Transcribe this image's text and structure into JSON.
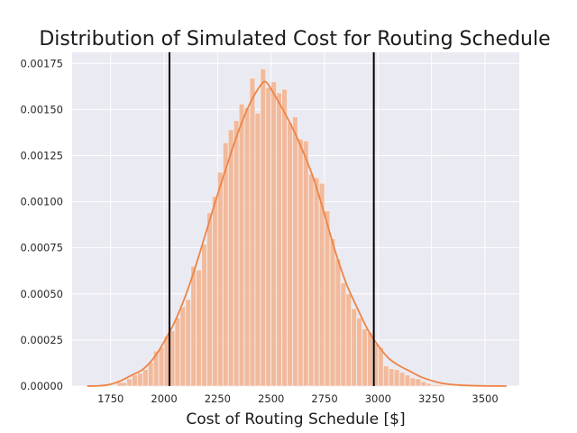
{
  "chart_data": {
    "type": "histogram",
    "title": "Distribution of Simulated Cost for Routing Schedule",
    "xlabel": "Cost of Routing Schedule [$]",
    "ylabel": "",
    "xlim": [
      1570,
      3660
    ],
    "ylim": [
      0,
      0.00181
    ],
    "xticks": [
      "1750",
      "2000",
      "2250",
      "2500",
      "2750",
      "3000",
      "3250",
      "3500"
    ],
    "yticks": [
      "0.00000",
      "0.00025",
      "0.00050",
      "0.00075",
      "0.00100",
      "0.00125",
      "0.00150",
      "0.00175"
    ],
    "grid": true,
    "histogram": {
      "bin_edges": [
        1645,
        1690,
        1735,
        1780,
        1825,
        1850,
        1875,
        1900,
        1925,
        1950,
        1975,
        2000,
        2025,
        2050,
        2075,
        2100,
        2125,
        2150,
        2175,
        2200,
        2225,
        2250,
        2275,
        2300,
        2325,
        2350,
        2375,
        2400,
        2425,
        2450,
        2475,
        2500,
        2525,
        2550,
        2575,
        2600,
        2625,
        2650,
        2675,
        2700,
        2725,
        2750,
        2775,
        2800,
        2825,
        2850,
        2875,
        2900,
        2925,
        2950,
        2975,
        3000,
        3025,
        3050,
        3075,
        3100,
        3125,
        3150,
        3175,
        3200,
        3225,
        3250,
        3300,
        3350,
        3400,
        3500,
        3600
      ],
      "counts": [
        5e-07,
        1e-06,
        2.5e-06,
        2e-05,
        4e-05,
        6e-05,
        7e-05,
        9e-05,
        0.00013,
        0.00019,
        0.00021,
        0.00027,
        0.0003,
        0.00037,
        0.00043,
        0.00047,
        0.00065,
        0.00063,
        0.00077,
        0.00094,
        0.00103,
        0.00116,
        0.00132,
        0.00139,
        0.00144,
        0.00153,
        0.00151,
        0.00167,
        0.00148,
        0.00172,
        0.00162,
        0.00165,
        0.00159,
        0.00161,
        0.00143,
        0.00146,
        0.00134,
        0.00133,
        0.00115,
        0.00113,
        0.0011,
        0.00095,
        0.0008,
        0.00069,
        0.00056,
        0.0005,
        0.00042,
        0.00037,
        0.00031,
        0.00029,
        0.00023,
        0.00021,
        0.00011,
        9.5e-05,
        9e-05,
        7.5e-05,
        6e-05,
        4.5e-05,
        4e-05,
        2.5e-05,
        1.5e-05,
        7.5e-06,
        2.5e-06,
        1e-06,
        5e-07,
        2e-07
      ]
    },
    "kde": {
      "x": [
        1640,
        1700,
        1750,
        1800,
        1850,
        1900,
        1950,
        2000,
        2050,
        2100,
        2150,
        2200,
        2250,
        2300,
        2350,
        2400,
        2450,
        2475,
        2500,
        2550,
        2600,
        2650,
        2700,
        2750,
        2800,
        2850,
        2900,
        2950,
        3000,
        3050,
        3100,
        3150,
        3200,
        3250,
        3300,
        3350,
        3400,
        3500,
        3600
      ],
      "y": [
        0.0,
        2e-06,
        1e-05,
        3e-05,
        6e-05,
        9e-05,
        0.00015,
        0.00024,
        0.00035,
        0.00049,
        0.00066,
        0.00085,
        0.00104,
        0.00122,
        0.00139,
        0.00153,
        0.00163,
        0.00165,
        0.00161,
        0.00151,
        0.0014,
        0.00127,
        0.00112,
        0.00093,
        0.00073,
        0.00056,
        0.00043,
        0.00031,
        0.00022,
        0.00015,
        0.00011,
        8e-05,
        5e-05,
        3e-05,
        1.5e-05,
        8e-06,
        4e-06,
        1e-06,
        0.0
      ]
    },
    "vlines": [
      2025,
      2980
    ],
    "colors": {
      "bar": "#f3b594",
      "bar_edge": "#f6eee9",
      "kde": "#ee8446",
      "vline": "#000000",
      "plot_bg": "#eaeaf2",
      "grid": "#ffffff",
      "text": "#262626"
    }
  }
}
